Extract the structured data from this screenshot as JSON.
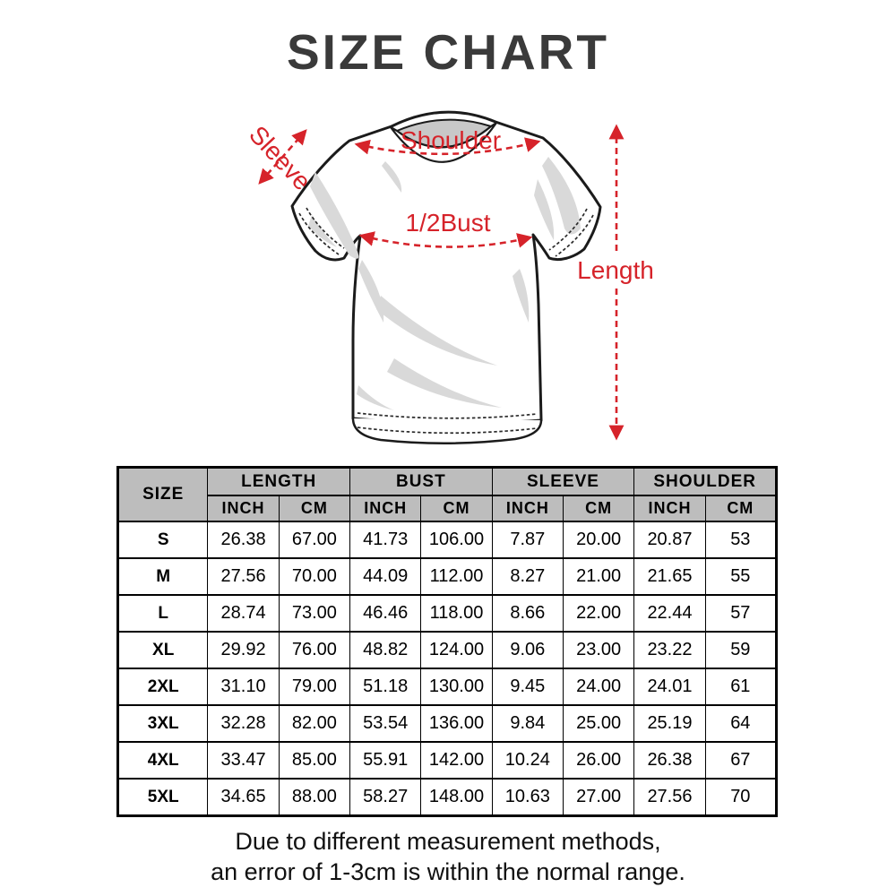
{
  "title": "SIZE CHART",
  "diagram": {
    "labels": {
      "sleeve": "Sleeve",
      "shoulder": "Shoulder",
      "bust": "1/2Bust",
      "length": "Length"
    }
  },
  "table": {
    "size_header": "SIZE",
    "groups": [
      {
        "label": "LENGTH"
      },
      {
        "label": "BUST"
      },
      {
        "label": "SLEEVE"
      },
      {
        "label": "SHOULDER"
      }
    ],
    "subheaders": [
      "INCH",
      "CM"
    ],
    "rows": [
      {
        "size": "S",
        "values": [
          "26.38",
          "67.00",
          "41.73",
          "106.00",
          "7.87",
          "20.00",
          "20.87",
          "53"
        ]
      },
      {
        "size": "M",
        "values": [
          "27.56",
          "70.00",
          "44.09",
          "112.00",
          "8.27",
          "21.00",
          "21.65",
          "55"
        ]
      },
      {
        "size": "L",
        "values": [
          "28.74",
          "73.00",
          "46.46",
          "118.00",
          "8.66",
          "22.00",
          "22.44",
          "57"
        ]
      },
      {
        "size": "XL",
        "values": [
          "29.92",
          "76.00",
          "48.82",
          "124.00",
          "9.06",
          "23.00",
          "23.22",
          "59"
        ]
      },
      {
        "size": "2XL",
        "values": [
          "31.10",
          "79.00",
          "51.18",
          "130.00",
          "9.45",
          "24.00",
          "24.01",
          "61"
        ]
      },
      {
        "size": "3XL",
        "values": [
          "32.28",
          "82.00",
          "53.54",
          "136.00",
          "9.84",
          "25.00",
          "25.19",
          "64"
        ]
      },
      {
        "size": "4XL",
        "values": [
          "33.47",
          "85.00",
          "55.91",
          "142.00",
          "10.24",
          "26.00",
          "26.38",
          "67"
        ]
      },
      {
        "size": "5XL",
        "values": [
          "34.65",
          "88.00",
          "58.27",
          "148.00",
          "10.63",
          "27.00",
          "27.56",
          "70"
        ]
      }
    ]
  },
  "footer": {
    "line1": "Due to different measurement methods,",
    "line2": "an error of 1-3cm is within the normal range."
  },
  "colors": {
    "annotation_red": "#d6232a",
    "header_bg": "#bdbdbd",
    "border": "#000000",
    "title_text": "#3a3a3a",
    "shirt_line": "#1b1b1b",
    "shade_gray": "#d9d9d9"
  },
  "chart_data": {
    "type": "table",
    "title": "SIZE CHART",
    "columns": [
      "SIZE",
      "LENGTH INCH",
      "LENGTH CM",
      "BUST INCH",
      "BUST CM",
      "SLEEVE INCH",
      "SLEEVE CM",
      "SHOULDER INCH",
      "SHOULDER CM"
    ],
    "rows": [
      [
        "S",
        26.38,
        67.0,
        41.73,
        106.0,
        7.87,
        20.0,
        20.87,
        53
      ],
      [
        "M",
        27.56,
        70.0,
        44.09,
        112.0,
        8.27,
        21.0,
        21.65,
        55
      ],
      [
        "L",
        28.74,
        73.0,
        46.46,
        118.0,
        8.66,
        22.0,
        22.44,
        57
      ],
      [
        "XL",
        29.92,
        76.0,
        48.82,
        124.0,
        9.06,
        23.0,
        23.22,
        59
      ],
      [
        "2XL",
        31.1,
        79.0,
        51.18,
        130.0,
        9.45,
        24.0,
        24.01,
        61
      ],
      [
        "3XL",
        32.28,
        82.0,
        53.54,
        136.0,
        9.84,
        25.0,
        25.19,
        64
      ],
      [
        "4XL",
        33.47,
        85.0,
        55.91,
        142.0,
        10.24,
        26.0,
        26.38,
        67
      ],
      [
        "5XL",
        34.65,
        88.0,
        58.27,
        148.0,
        10.63,
        27.0,
        27.56,
        70
      ]
    ],
    "annotations": [
      "Sleeve",
      "Shoulder",
      "1/2Bust",
      "Length"
    ],
    "note": "Due to different measurement methods, an error of 1-3cm is within the normal range."
  }
}
